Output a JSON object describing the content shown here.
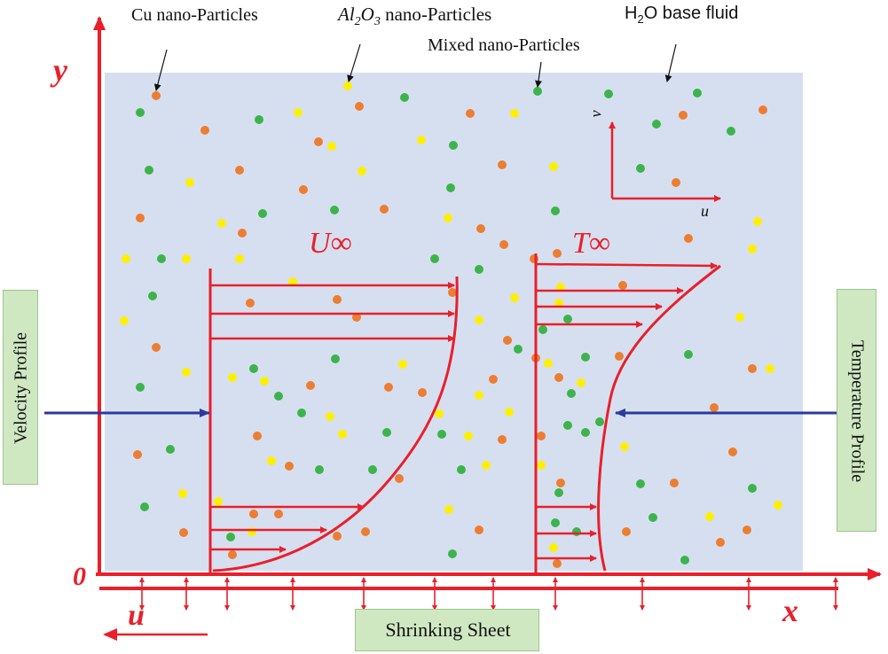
{
  "labels": {
    "cu": "Cu nano-Particles",
    "al2o3_main": "Al",
    "al2o3_sub1": "2",
    "al2o3_mid": "O",
    "al2o3_sub2": "3",
    "al2o3_tail": " nano-Particles",
    "mixed": "Mixed nano-Particles",
    "h2o_h": "H",
    "h2o_sub": "2",
    "h2o_tail": "O base fluid",
    "u_inf_sym": "U",
    "u_inf_sub": "∞",
    "t_inf_sym": "T",
    "t_inf_sub": "∞",
    "inset_v": "v",
    "inset_u": "u",
    "velocity_profile": "Velocity  Profile",
    "temperature_profile": "Temperature  Profile",
    "shrinking_sheet": "Shrinking Sheet"
  },
  "axes": {
    "y": "y",
    "x": "x",
    "origin": "0",
    "u": "u"
  },
  "colors": {
    "background": "#ffffff",
    "fluid": "#d6dff0",
    "red": "#e8202a",
    "blue": "#2b3a9e",
    "green_box": "#cfe8c2",
    "cu_particle": "#ed7d31",
    "al2o3_particle": "#ffef00",
    "mixed_particle": "#3cb44b"
  }
}
